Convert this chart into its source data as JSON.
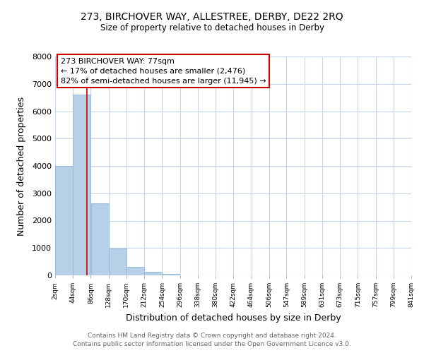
{
  "title": "273, BIRCHOVER WAY, ALLESTREE, DERBY, DE22 2RQ",
  "subtitle": "Size of property relative to detached houses in Derby",
  "xlabel": "Distribution of detached houses by size in Derby",
  "ylabel": "Number of detached properties",
  "bar_edges": [
    2,
    44,
    86,
    128,
    170,
    212,
    254,
    296,
    338,
    380,
    422,
    464,
    506,
    547,
    589,
    631,
    673,
    715,
    757,
    799,
    841
  ],
  "bar_heights": [
    4000,
    6600,
    2620,
    970,
    320,
    130,
    60,
    0,
    0,
    0,
    0,
    0,
    0,
    0,
    0,
    0,
    0,
    0,
    0,
    0
  ],
  "bar_color": "#b8cfe8",
  "bar_edgecolor": "#9ab8d8",
  "property_line_x": 77,
  "property_line_color": "#cc0000",
  "ylim": [
    0,
    8000
  ],
  "xlim": [
    2,
    841
  ],
  "tick_labels": [
    "2sqm",
    "44sqm",
    "86sqm",
    "128sqm",
    "170sqm",
    "212sqm",
    "254sqm",
    "296sqm",
    "338sqm",
    "380sqm",
    "422sqm",
    "464sqm",
    "506sqm",
    "547sqm",
    "589sqm",
    "631sqm",
    "673sqm",
    "715sqm",
    "757sqm",
    "799sqm",
    "841sqm"
  ],
  "annotation_box_text": "273 BIRCHOVER WAY: 77sqm\n← 17% of detached houses are smaller (2,476)\n82% of semi-detached houses are larger (11,945) →",
  "footer1": "Contains HM Land Registry data © Crown copyright and database right 2024.",
  "footer2": "Contains public sector information licensed under the Open Government Licence v3.0.",
  "bg_color": "#ffffff",
  "grid_color": "#c8d4e8",
  "yticks": [
    0,
    1000,
    2000,
    3000,
    4000,
    5000,
    6000,
    7000,
    8000
  ]
}
